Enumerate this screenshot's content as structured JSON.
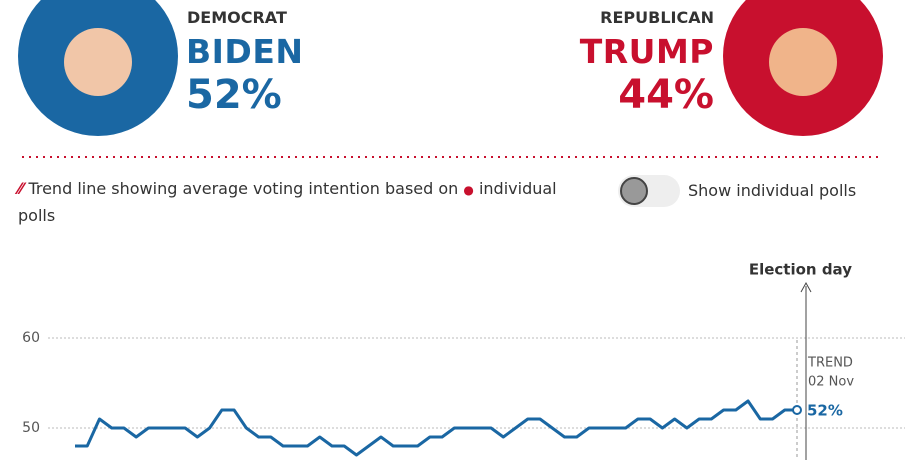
{
  "header": {
    "left": {
      "party": "DEMOCRAT",
      "name": "BIDEN",
      "share": "52%"
    },
    "right": {
      "party": "REPUBLICAN",
      "name": "TRUMP",
      "share": "44%"
    }
  },
  "legend": {
    "text_before": "Trend line showing average voting intention based on",
    "text_after": "individual polls"
  },
  "toggle": {
    "label": "Show individual polls"
  },
  "chart_data": {
    "type": "line",
    "series": [
      {
        "name": "BIDEN",
        "color": "#1a67a3",
        "values": [
          48,
          48,
          51,
          50,
          50,
          49,
          50,
          50,
          50,
          50,
          49,
          50,
          52,
          52,
          50,
          49,
          49,
          48,
          48,
          48,
          49,
          48,
          48,
          47,
          48,
          49,
          48,
          48,
          48,
          49,
          49,
          50,
          50,
          50,
          50,
          49,
          50,
          51,
          51,
          50,
          49,
          49,
          50,
          50,
          50,
          50,
          51,
          51,
          50,
          51,
          50,
          51,
          51,
          52,
          52,
          53,
          51,
          51,
          52,
          52
        ],
        "value_labels": {
          "59": "52%"
        }
      }
    ],
    "ylim": [
      46.5,
      66
    ],
    "yticks": [
      50,
      60
    ],
    "grid": true,
    "annotations": {
      "election_day": "Election day",
      "trend": "TREND",
      "date": "02 Nov"
    }
  }
}
